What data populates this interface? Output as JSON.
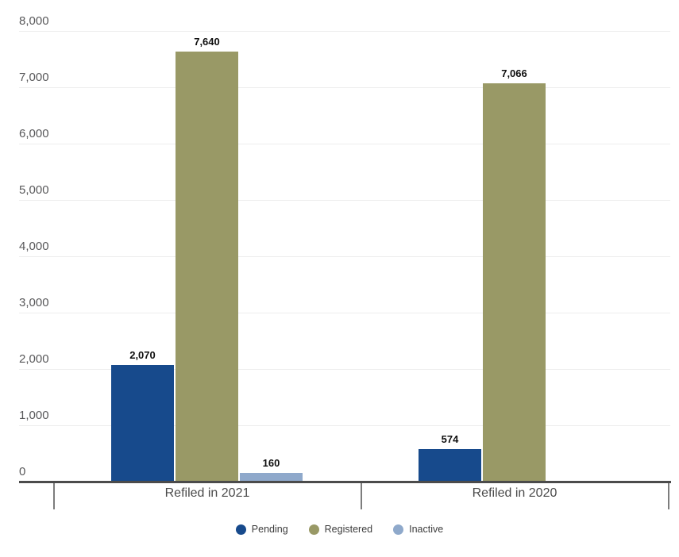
{
  "chart_data": {
    "type": "bar",
    "title": "",
    "xlabel": "",
    "ylabel": "",
    "categories": [
      "Refiled in 2021",
      "Refiled in 2020"
    ],
    "series": [
      {
        "name": "Pending",
        "color": "#174a8c",
        "values": [
          2070,
          574
        ],
        "labels": [
          "2,070",
          "574"
        ]
      },
      {
        "name": "Registered",
        "color": "#999966",
        "values": [
          7640,
          7066
        ],
        "labels": [
          "7,640",
          "7,066"
        ]
      },
      {
        "name": "Inactive",
        "color": "#8fa9cb",
        "values": [
          160,
          0
        ],
        "labels": [
          "160",
          ""
        ]
      }
    ],
    "ylim": [
      0,
      8000
    ],
    "ytick_interval": 1000,
    "yticks": [
      {
        "value": 0,
        "label": "0"
      },
      {
        "value": 1000,
        "label": "1,000"
      },
      {
        "value": 2000,
        "label": "2,000"
      },
      {
        "value": 3000,
        "label": "3,000"
      },
      {
        "value": 4000,
        "label": "4,000"
      },
      {
        "value": 5000,
        "label": "5,000"
      },
      {
        "value": 6000,
        "label": "6,000"
      },
      {
        "value": 7000,
        "label": "7,000"
      },
      {
        "value": 8000,
        "label": "8,000"
      }
    ],
    "grid": true,
    "legend_position": "bottom"
  },
  "style_colors": {
    "gridline": "#ededed",
    "axis_line": "#4b4b4b",
    "tick_mark": "#7d7d7d",
    "y_label_text": "#58585a",
    "category_label_text": "#4a4a4a",
    "value_label_text": "#0f0f0f",
    "legend_text": "#3c3c3c",
    "background": "#ffffff"
  }
}
